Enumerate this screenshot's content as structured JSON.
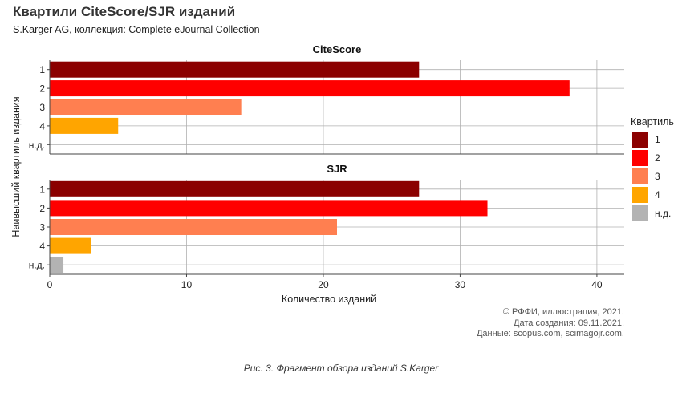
{
  "header": {
    "title": "Квартили CiteScore/SJR изданий",
    "subtitle": "S.Karger AG, коллекция: Complete eJournal Collection"
  },
  "credits": {
    "line1": "© РФФИ, иллюстрация, 2021.",
    "line2": "Дата создания: 09.11.2021.",
    "line3": "Данные: scopus.com, scimagojr.com."
  },
  "caption": "Рис. 3. Фрагмент обзора изданий S.Karger",
  "chart_data": {
    "type": "bar",
    "orientation": "horizontal",
    "xlabel": "Количество изданий",
    "ylabel": "Наивысший квартиль издания",
    "xlim": [
      0,
      42
    ],
    "xticks": [
      0,
      10,
      20,
      30,
      40
    ],
    "categories": [
      "1",
      "2",
      "3",
      "4",
      "н.д."
    ],
    "grid": true,
    "legend": {
      "title": "Квартиль",
      "placement": "right",
      "entries": [
        "1",
        "2",
        "3",
        "4",
        "н.д."
      ],
      "colors": [
        "#8b0000",
        "#ff0000",
        "#ff7f50",
        "#ffa500",
        "#b3b3b3"
      ]
    },
    "panels": [
      {
        "title": "CiteScore",
        "values": [
          27,
          38,
          14,
          5,
          0
        ]
      },
      {
        "title": "SJR",
        "values": [
          27,
          32,
          21,
          3,
          1
        ]
      }
    ]
  }
}
